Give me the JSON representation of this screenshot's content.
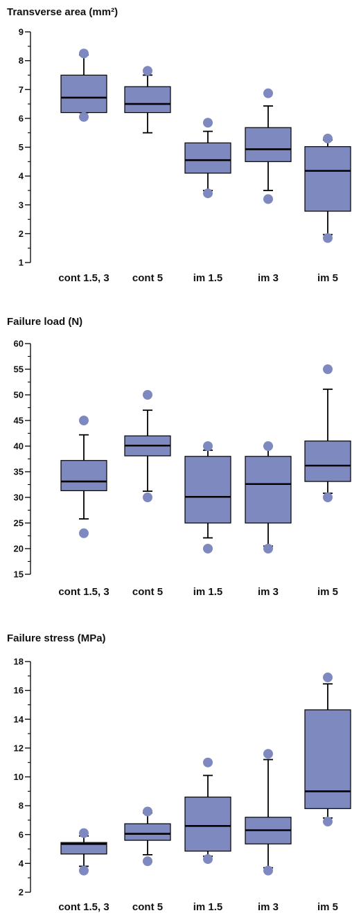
{
  "colors": {
    "box_fill": "#7e89bf",
    "outlier": "#7e89bf",
    "line": "#000000"
  },
  "chart_data": [
    {
      "type": "boxplot",
      "title": "Transverse area (mm²)",
      "categories": [
        "cont 1.5, 3",
        "cont 5",
        "im 1.5",
        "im 3",
        "im 5"
      ],
      "ylim": [
        1,
        9
      ],
      "yticks": [
        1,
        2,
        3,
        4,
        5,
        6,
        7,
        8,
        9
      ],
      "grid": false,
      "boxes": [
        {
          "whisker_low": 6.2,
          "q1": 6.2,
          "median": 6.72,
          "q3": 7.5,
          "whisker_high": 8.2,
          "outliers": [
            8.25,
            6.05
          ]
        },
        {
          "whisker_low": 5.5,
          "q1": 6.2,
          "median": 6.5,
          "q3": 7.1,
          "whisker_high": 7.5,
          "outliers": [
            7.65
          ]
        },
        {
          "whisker_low": 3.5,
          "q1": 4.1,
          "median": 4.55,
          "q3": 5.15,
          "whisker_high": 5.55,
          "outliers": [
            5.85,
            3.4
          ]
        },
        {
          "whisker_low": 3.5,
          "q1": 4.5,
          "median": 4.93,
          "q3": 5.68,
          "whisker_high": 6.43,
          "outliers": [
            6.87,
            3.2
          ]
        },
        {
          "whisker_low": 1.97,
          "q1": 2.78,
          "median": 4.18,
          "q3": 5.02,
          "whisker_high": 5.25,
          "outliers": [
            5.3,
            1.85
          ]
        }
      ]
    },
    {
      "type": "boxplot",
      "title": "Failure load (N)",
      "categories": [
        "cont 1.5, 3",
        "cont 5",
        "im 1.5",
        "im 3",
        "im 5"
      ],
      "ylim": [
        15,
        60
      ],
      "yticks": [
        15,
        20,
        25,
        30,
        35,
        40,
        45,
        50,
        55,
        60
      ],
      "grid": false,
      "boxes": [
        {
          "whisker_low": 25.8,
          "q1": 31.3,
          "median": 33.1,
          "q3": 37.2,
          "whisker_high": 42.2,
          "outliers": [
            45,
            23
          ]
        },
        {
          "whisker_low": 31.2,
          "q1": 38.1,
          "median": 40.1,
          "q3": 42,
          "whisker_high": 47,
          "outliers": [
            50,
            30
          ]
        },
        {
          "whisker_low": 22.1,
          "q1": 25,
          "median": 30.1,
          "q3": 38,
          "whisker_high": 39.2,
          "outliers": [
            40,
            20
          ]
        },
        {
          "whisker_low": 20.5,
          "q1": 25,
          "median": 32.6,
          "q3": 38,
          "whisker_high": 40,
          "outliers": [
            40,
            20
          ]
        },
        {
          "whisker_low": 30.8,
          "q1": 33.1,
          "median": 36.2,
          "q3": 41,
          "whisker_high": 51.1,
          "outliers": [
            55,
            30
          ]
        }
      ]
    },
    {
      "type": "boxplot",
      "title": "Failure stress (MPa)",
      "categories": [
        "cont 1.5, 3",
        "cont 5",
        "im 1.5",
        "im 3",
        "im 5"
      ],
      "ylim": [
        2,
        18
      ],
      "yticks": [
        2,
        4,
        6,
        8,
        10,
        12,
        14,
        16,
        18
      ],
      "grid": false,
      "boxes": [
        {
          "whisker_low": 3.8,
          "q1": 4.65,
          "median": 5.35,
          "q3": 5.45,
          "whisker_high": 5.9,
          "outliers": [
            6.1,
            3.5
          ]
        },
        {
          "whisker_low": 4.6,
          "q1": 5.6,
          "median": 6.05,
          "q3": 6.75,
          "whisker_high": 7.5,
          "outliers": [
            7.6,
            4.15
          ]
        },
        {
          "whisker_low": 4.5,
          "q1": 4.85,
          "median": 6.6,
          "q3": 8.6,
          "whisker_high": 10.1,
          "outliers": [
            11,
            4.3
          ]
        },
        {
          "whisker_low": 3.7,
          "q1": 5.35,
          "median": 6.3,
          "q3": 7.2,
          "whisker_high": 11.2,
          "outliers": [
            11.6,
            3.5
          ]
        },
        {
          "whisker_low": 7.15,
          "q1": 7.8,
          "median": 9,
          "q3": 14.65,
          "whisker_high": 16.45,
          "outliers": [
            16.9,
            6.9
          ]
        }
      ]
    }
  ]
}
